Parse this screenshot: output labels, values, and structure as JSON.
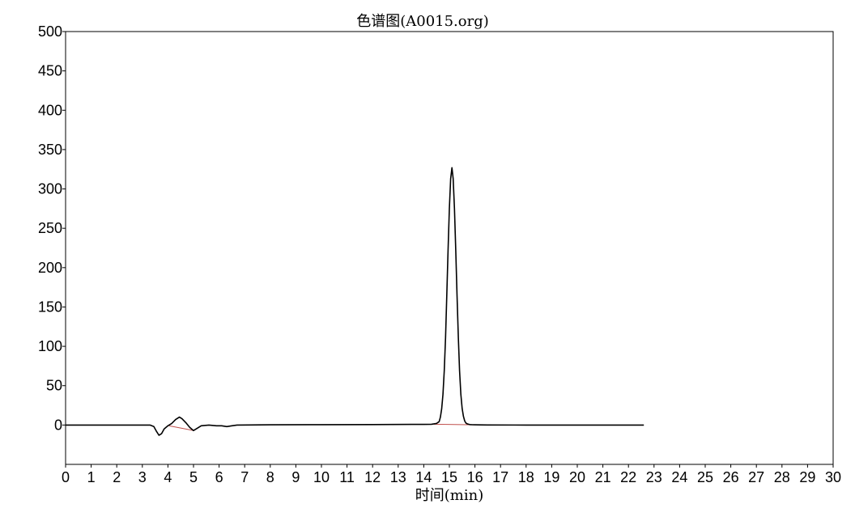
{
  "chart_data": {
    "type": "line",
    "title": "色谱图(A0015.org)",
    "xlabel": "时间(min)",
    "ylabel": "",
    "xlim": [
      0,
      30
    ],
    "ylim": [
      -50,
      500
    ],
    "xticks": [
      0,
      1,
      2,
      3,
      4,
      5,
      6,
      7,
      8,
      9,
      10,
      11,
      12,
      13,
      14,
      15,
      16,
      17,
      18,
      19,
      20,
      21,
      22,
      23,
      24,
      25,
      26,
      27,
      28,
      29,
      30
    ],
    "yticks": [
      0,
      50,
      100,
      150,
      200,
      250,
      300,
      350,
      400,
      450,
      500
    ],
    "grid": false,
    "line_color": "#000000",
    "baseline_color": "#c0504d",
    "series": [
      {
        "x": [
          0,
          3.3,
          3.45,
          3.55,
          3.65,
          3.75,
          3.85,
          4.0,
          4.15,
          4.3,
          4.45,
          4.55,
          4.7,
          4.85,
          5.0,
          5.15,
          5.3,
          5.6,
          5.9,
          6.1,
          6.3,
          6.5,
          6.7,
          8,
          10,
          12,
          13.5,
          14.0,
          14.3,
          14.5,
          14.6,
          14.65,
          14.7,
          14.75,
          14.8,
          14.85,
          14.9,
          14.95,
          15.0,
          15.05,
          15.1,
          15.15,
          15.2,
          15.25,
          15.3,
          15.35,
          15.4,
          15.45,
          15.5,
          15.55,
          15.6,
          15.65,
          15.7,
          15.75,
          15.8,
          15.9,
          16.0,
          16.2,
          16.5,
          18,
          20,
          22.6
        ],
        "y": [
          0,
          0,
          -2,
          -8,
          -13,
          -11,
          -5,
          -1,
          2,
          7,
          10,
          8,
          3,
          -3,
          -7,
          -4,
          -1,
          0,
          -1,
          -1,
          -2,
          -1,
          0,
          0.3,
          0.5,
          0.6,
          0.8,
          0.8,
          1,
          2,
          4.3,
          9.9,
          20.5,
          39,
          69,
          111,
          164,
          222,
          275,
          313,
          327,
          313,
          275,
          222,
          164,
          111,
          69,
          39,
          21,
          11,
          5,
          2.5,
          1.5,
          1,
          0.6,
          0.4,
          0.3,
          0.2,
          0.1,
          0,
          0,
          0
        ]
      }
    ],
    "integration_baselines": [
      {
        "x": [
          4.05,
          5.0
        ],
        "y": [
          -1,
          -7
        ]
      },
      {
        "x": [
          14.4,
          16.0
        ],
        "y": [
          1,
          0.3
        ]
      }
    ]
  }
}
